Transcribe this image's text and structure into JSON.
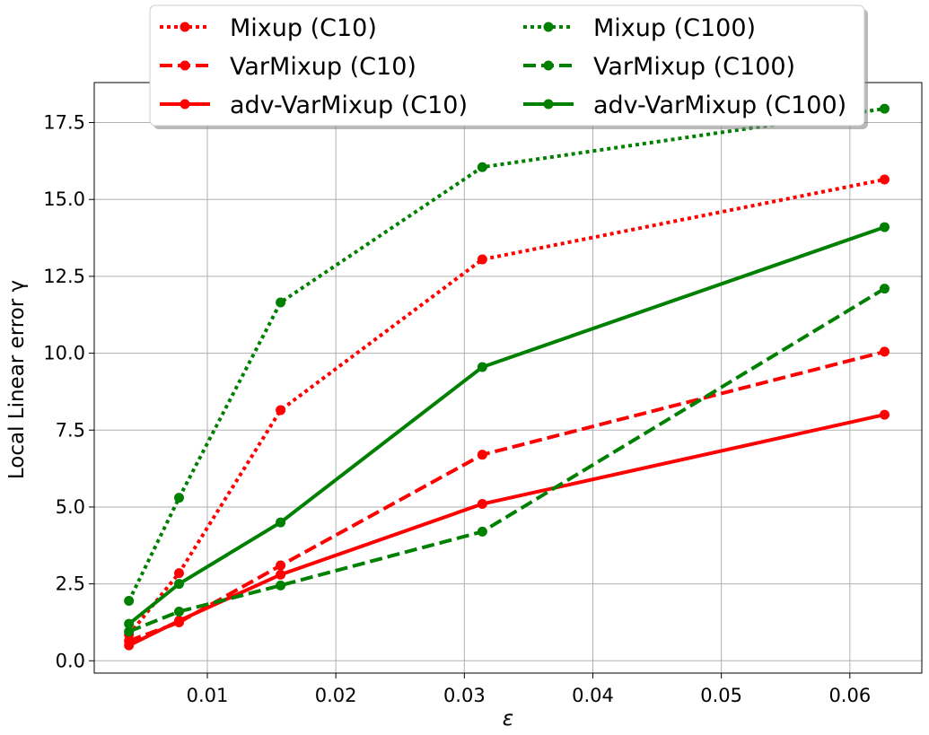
{
  "chart_data": {
    "type": "line",
    "title": "",
    "xlabel": "ε",
    "ylabel": "Local Linear error γ",
    "xlim": [
      0.0012,
      0.0656
    ],
    "ylim": [
      -0.4,
      18.8
    ],
    "x_ticks": [
      0.01,
      0.02,
      0.03,
      0.04,
      0.05,
      0.06
    ],
    "x_tick_labels": [
      "0.01",
      "0.02",
      "0.03",
      "0.04",
      "0.05",
      "0.06"
    ],
    "y_ticks": [
      0.0,
      2.5,
      5.0,
      7.5,
      10.0,
      12.5,
      15.0,
      17.5
    ],
    "y_tick_labels": [
      "0.0",
      "2.5",
      "5.0",
      "7.5",
      "10.0",
      "12.5",
      "15.0",
      "17.5"
    ],
    "grid": true,
    "legend_position": "top-center",
    "x": [
      0.0039,
      0.0078,
      0.0157,
      0.0314,
      0.0627
    ],
    "series": [
      {
        "name": "Mixup (C10)",
        "color": "#ff0000",
        "style": "dotted",
        "values": [
          0.85,
          2.85,
          8.15,
          13.05,
          15.65
        ]
      },
      {
        "name": "VarMixup (C10)",
        "color": "#ff0000",
        "style": "dashed",
        "values": [
          0.65,
          1.25,
          3.1,
          6.7,
          10.05
        ]
      },
      {
        "name": "adv-VarMixup (C10)",
        "color": "#ff0000",
        "style": "solid",
        "values": [
          0.5,
          1.3,
          2.8,
          5.1,
          8.0
        ]
      },
      {
        "name": "Mixup (C100)",
        "color": "#008000",
        "style": "dotted",
        "values": [
          1.95,
          5.3,
          11.65,
          16.05,
          17.95
        ]
      },
      {
        "name": "VarMixup (C100)",
        "color": "#008000",
        "style": "dashed",
        "values": [
          0.95,
          1.6,
          2.45,
          4.2,
          12.1
        ]
      },
      {
        "name": "adv-VarMixup (C100)",
        "color": "#008000",
        "style": "solid",
        "values": [
          1.2,
          2.5,
          4.5,
          9.55,
          14.1
        ]
      }
    ]
  }
}
